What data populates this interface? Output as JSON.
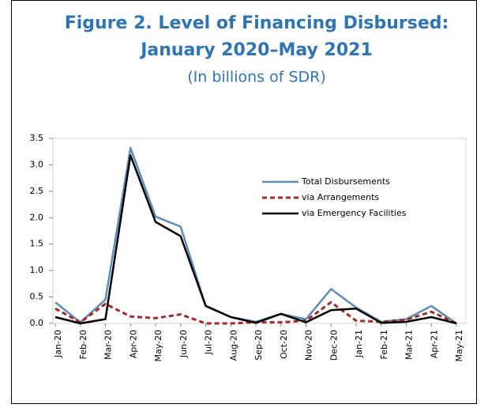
{
  "chart_data": {
    "type": "line",
    "title": "Figure 2. Level of Financing Disbursed:",
    "title_line2": "January 2020–May 2021",
    "subtitle": "(In billions of SDR)",
    "categories": [
      "Jan-20",
      "Feb-20",
      "Mar-20",
      "Apr-20",
      "May-20",
      "Jun-20",
      "Jul-20",
      "Aug-20",
      "Sep-20",
      "Oct-20",
      "Nov-20",
      "Dec-20",
      "Jan-21",
      "Feb-21",
      "Mar-21",
      "Apr-21",
      "May-21"
    ],
    "series": [
      {
        "name": "Total Disbursements",
        "color": "#5b8db8",
        "dash": false,
        "values": [
          0.4,
          0.02,
          0.45,
          3.32,
          2.02,
          1.83,
          0.33,
          0.12,
          0.03,
          0.18,
          0.08,
          0.65,
          0.3,
          0.03,
          0.08,
          0.33,
          0
        ]
      },
      {
        "name": "via Arrangements",
        "color": "#a52a2a",
        "dash": true,
        "values": [
          0.28,
          0.02,
          0.37,
          0.13,
          0.1,
          0.17,
          0,
          0,
          0.02,
          0.02,
          0.05,
          0.4,
          0.05,
          0.03,
          0.07,
          0.22,
          0
        ]
      },
      {
        "name": "via Emergency Facilities",
        "color": "#000000",
        "dash": false,
        "values": [
          0.12,
          0,
          0.08,
          3.18,
          1.92,
          1.65,
          0.33,
          0.12,
          0.01,
          0.18,
          0.02,
          0.25,
          0.28,
          0.01,
          0.03,
          0.12,
          0
        ]
      }
    ],
    "ylim": [
      0,
      3.5
    ],
    "yticks": [
      {
        "value": 0,
        "label": "0.0"
      },
      0.5,
      {
        "value": 1,
        "label": "1.0"
      },
      1.5,
      {
        "value": 2,
        "label": "2.0"
      },
      2.5,
      {
        "value": 3,
        "label": "3.0"
      },
      3.5
    ],
    "grid": false,
    "legend": "upper right"
  }
}
